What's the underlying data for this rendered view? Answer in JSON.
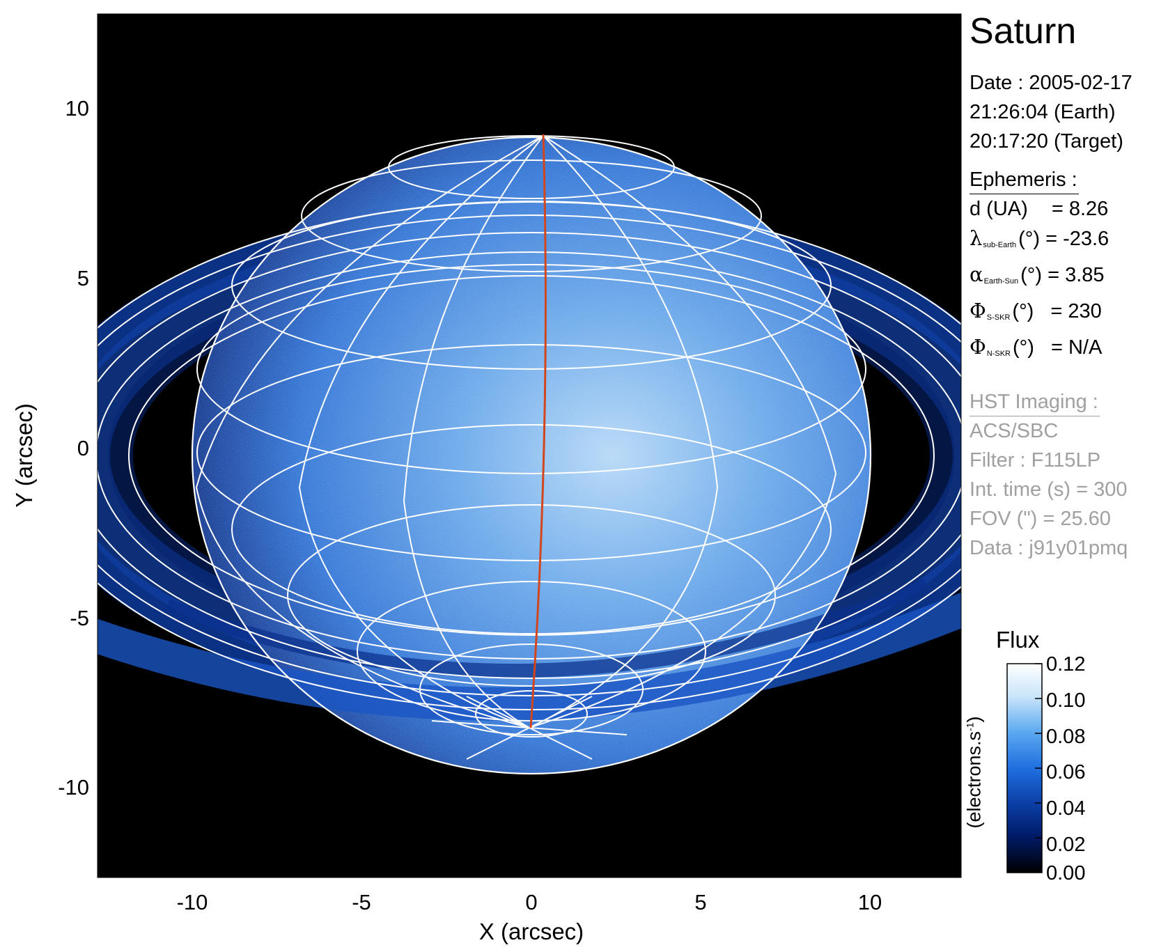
{
  "figure": {
    "title": "Saturn",
    "xlabel": "X (arcsec)",
    "ylabel": "Y (arcsec)",
    "x_range": [
      -12.8,
      12.8
    ],
    "y_range": [
      -12.8,
      12.8
    ],
    "x_ticks": [
      "-10",
      "-5",
      "0",
      "5",
      "10"
    ],
    "y_ticks": [
      "10",
      "5",
      "0",
      "-5",
      "-10"
    ]
  },
  "info": {
    "date_line": "Date : 2005-02-17",
    "earth_time": "21:26:04 (Earth)",
    "target_time": "20:17:20 (Target)",
    "ephemeris_head": "Ephemeris :",
    "d_label": "d (UA)",
    "d_value": "= 8.26",
    "lat_symbol": "λ",
    "lat_sub": "sub-Earth",
    "lat_unit": "(°)",
    "lat_value": "= -23.6",
    "alpha_symbol": "α",
    "alpha_sub": "Earth-Sun",
    "alpha_unit": "(°)",
    "alpha_value": "= 3.85",
    "phis_symbol": "Φ",
    "phis_sub": "S-SKR",
    "phis_unit": "(°)",
    "phis_value": "= 230",
    "phin_symbol": "Φ",
    "phin_sub": "N-SKR",
    "phin_unit": "(°)",
    "phin_value": "= N/A",
    "hst_head": "HST Imaging :",
    "instrument": "ACS/SBC",
    "filter": "Filter : F115LP",
    "int_time": "Int. time (s) = 300",
    "fov": "FOV (\") = 25.60",
    "data_id": "Data : j91y01pmq"
  },
  "colorbar": {
    "title": "Flux",
    "unit_prefix": "(electrons.s",
    "unit_exp": "-1",
    "unit_suffix": ")",
    "ticks": [
      "0.12",
      "0.10",
      "0.08",
      "0.06",
      "0.04",
      "0.02",
      "0.00"
    ],
    "tick_values": [
      0.12,
      0.1,
      0.08,
      0.06,
      0.04,
      0.02,
      0.0
    ],
    "range": [
      0.0,
      0.12
    ],
    "colors": [
      "#000000",
      "#001a66",
      "#0b3fa6",
      "#1f6fe0",
      "#5aa8f0",
      "#c8e4fa",
      "#ffffff"
    ]
  },
  "colors": {
    "background": "#000000",
    "grid": "#ffffff",
    "meridian": "#d2461e",
    "disk_dark": "#0a2f8a",
    "disk_mid": "#2a6fd4",
    "disk_bright": "#b6d8f6"
  }
}
